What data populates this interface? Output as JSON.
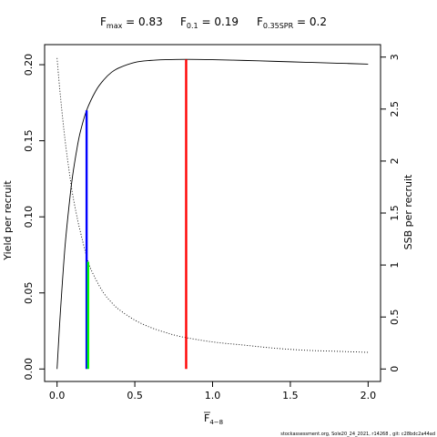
{
  "chart_data": {
    "type": "line",
    "title": {
      "fmax": {
        "label": "F",
        "sub": "max",
        "value": " = 0.83"
      },
      "f01": {
        "label": "F",
        "sub": "0.1",
        "value": " = 0.19"
      },
      "f035spr": {
        "label": "F",
        "sub": "0.35SPR",
        "value": " = 0.2"
      }
    },
    "xlabel": {
      "main": "F",
      "sub": "4−8"
    },
    "ylabel_left": "Yield per recruit",
    "ylabel_right": "SSB per recruit",
    "xlim": [
      0,
      2
    ],
    "ylim_left": [
      0,
      0.205
    ],
    "ylim_right": [
      0,
      3.0
    ],
    "x_ticks": [
      0,
      0.5,
      1,
      1.5,
      2
    ],
    "x_tick_labels": [
      "0.0",
      "0.5",
      "1.0",
      "1.5",
      "2.0"
    ],
    "y_left_ticks": [
      0,
      0.05,
      0.1,
      0.15,
      0.2
    ],
    "y_left_tick_labels": [
      "0.00",
      "0.05",
      "0.10",
      "0.15",
      "0.20"
    ],
    "y_right_ticks": [
      0,
      0.5,
      1,
      1.5,
      2,
      2.5,
      3
    ],
    "y_right_tick_labels": [
      "0",
      "0.5",
      "1",
      "1.5",
      "2",
      "2.5",
      "3"
    ],
    "series": [
      {
        "axis": "left",
        "style": "solid",
        "color": "#000000",
        "x": [
          0,
          0.02,
          0.05,
          0.08,
          0.1,
          0.13,
          0.15,
          0.19,
          0.25,
          0.3,
          0.35,
          0.4,
          0.5,
          0.6,
          0.7,
          0.83,
          1.0,
          1.2,
          1.4,
          1.6,
          1.8,
          2.0
        ],
        "y": [
          0,
          0.035,
          0.079,
          0.11,
          0.127,
          0.146,
          0.156,
          0.17,
          0.183,
          0.19,
          0.195,
          0.198,
          0.2015,
          0.2028,
          0.2033,
          0.2035,
          0.2033,
          0.2028,
          0.2022,
          0.2016,
          0.201,
          0.2004
        ]
      },
      {
        "axis": "right",
        "style": "dotted",
        "color": "#000000",
        "x": [
          0,
          0.02,
          0.05,
          0.08,
          0.1,
          0.13,
          0.15,
          0.2,
          0.25,
          0.3,
          0.35,
          0.4,
          0.5,
          0.6,
          0.7,
          0.8,
          1.0,
          1.2,
          1.4,
          1.6,
          1.8,
          2.0
        ],
        "y": [
          2.99,
          2.65,
          2.22,
          1.88,
          1.68,
          1.45,
          1.32,
          1.03,
          0.86,
          0.73,
          0.64,
          0.57,
          0.47,
          0.4,
          0.35,
          0.31,
          0.26,
          0.23,
          0.2,
          0.18,
          0.17,
          0.16
        ]
      }
    ],
    "reference_lines": [
      {
        "name": "Fmax",
        "x": 0.83,
        "y_top_left": 0.2035,
        "color": "#ff0000"
      },
      {
        "name": "F0.1",
        "x": 0.19,
        "y_top_left": 0.17,
        "color": "#0000ff"
      },
      {
        "name": "F0.35SPR",
        "x": 0.2,
        "y_top_left": 0.0705,
        "color": "#00ff00"
      }
    ],
    "footer": "stockassessment.org, Sole20_24_2021, r14268 , git: c28bdc2a44ad"
  }
}
